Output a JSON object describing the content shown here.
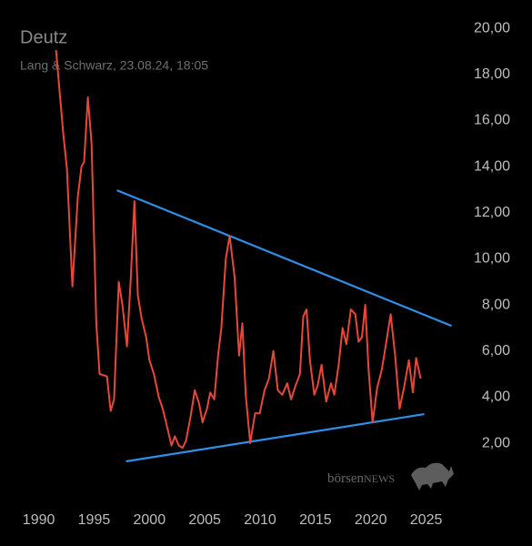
{
  "chart_data": {
    "type": "line",
    "title": "Deutz",
    "subtitle": "Lang & Schwarz, 23.08.24, 18:05",
    "watermark_a": "börsen",
    "watermark_b": "NEWS",
    "xlim": [
      1986.5,
      2027.5
    ],
    "xticks": [
      1990,
      1995,
      2000,
      2005,
      2010,
      2015,
      2020,
      2025
    ],
    "ylim": [
      0,
      21
    ],
    "yticks": [
      {
        "value": 2,
        "label": "2,00"
      },
      {
        "value": 4,
        "label": "4,00"
      },
      {
        "value": 6,
        "label": "6,00"
      },
      {
        "value": 8,
        "label": "8,00"
      },
      {
        "value": 10,
        "label": "10,00"
      },
      {
        "value": 12,
        "label": "12,00"
      },
      {
        "value": 14,
        "label": "14,00"
      },
      {
        "value": 16,
        "label": "16,00"
      },
      {
        "value": 18,
        "label": "18,00"
      },
      {
        "value": 20,
        "label": "20,00"
      }
    ],
    "grid": false,
    "series": [
      {
        "color": "#e8473a",
        "x": [
          1991.56,
          1992.2,
          1992.55,
          1993.04,
          1993.53,
          1993.86,
          1994.1,
          1994.44,
          1994.77,
          1995.2,
          1995.5,
          1996.16,
          1996.5,
          1996.8,
          1997.23,
          1997.56,
          1997.97,
          1998.3,
          1998.64,
          1998.96,
          1999.3,
          1999.7,
          2000.0,
          2000.4,
          2000.85,
          2001.2,
          2001.6,
          2002.0,
          2002.3,
          2002.65,
          2003.0,
          2003.3,
          2003.7,
          2004.1,
          2004.5,
          2004.8,
          2005.2,
          2005.5,
          2005.86,
          2006.2,
          2006.5,
          2006.9,
          2007.25,
          2007.7,
          2008.1,
          2008.4,
          2008.7,
          2009.1,
          2009.55,
          2009.97,
          2010.4,
          2010.8,
          2011.2,
          2011.6,
          2012.0,
          2012.45,
          2012.8,
          2013.2,
          2013.6,
          2013.9,
          2014.2,
          2014.5,
          2014.9,
          2015.2,
          2015.55,
          2015.97,
          2016.4,
          2016.7,
          2017.1,
          2017.45,
          2017.8,
          2018.2,
          2018.6,
          2018.9,
          2019.2,
          2019.5,
          2019.8,
          2020.16,
          2020.57,
          2021.0,
          2021.4,
          2021.8,
          2022.2,
          2022.6,
          2023.0,
          2023.44,
          2023.8,
          2024.1,
          2024.5
        ],
        "values": [
          19.05,
          15.5,
          13.9,
          8.8,
          12.7,
          14.0,
          14.2,
          17.0,
          15.0,
          7.2,
          5.0,
          4.9,
          3.4,
          3.9,
          9.0,
          8.0,
          6.2,
          9.0,
          12.5,
          8.4,
          7.4,
          6.6,
          5.6,
          5.0,
          4.0,
          3.5,
          2.7,
          1.9,
          2.3,
          1.9,
          1.8,
          2.1,
          3.1,
          4.3,
          3.7,
          2.9,
          3.5,
          4.2,
          3.9,
          5.8,
          7.0,
          10.0,
          11.0,
          9.2,
          5.8,
          7.2,
          4.1,
          2.0,
          3.3,
          3.3,
          4.3,
          4.8,
          6.0,
          4.3,
          4.1,
          4.6,
          3.9,
          4.5,
          5.0,
          7.5,
          7.8,
          5.6,
          4.1,
          4.5,
          5.4,
          3.8,
          4.6,
          4.1,
          5.4,
          7.0,
          6.3,
          7.8,
          7.6,
          6.4,
          6.6,
          8.0,
          5.2,
          2.9,
          4.4,
          5.2,
          6.4,
          7.6,
          5.8,
          3.5,
          4.4,
          5.6,
          4.2,
          5.7,
          4.8
        ]
      }
    ],
    "trendlines": [
      {
        "color": "#2f8fe8",
        "x": [
          1997.07,
          2027.3
        ],
        "values": [
          12.97,
          7.09
        ]
      },
      {
        "color": "#2f8fe8",
        "x": [
          1997.89,
          2024.84
        ],
        "values": [
          1.21,
          3.26
        ]
      }
    ]
  }
}
